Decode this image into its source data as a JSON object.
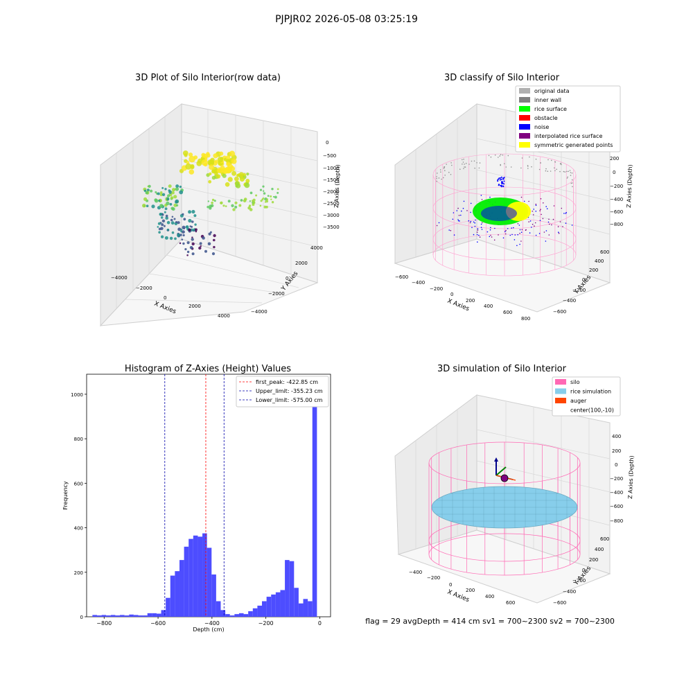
{
  "suptitle": "PJPJR02 2026-05-08 03:25:19",
  "footer": "flag = 29  avgDepth = 414 cm  sv1 = 700~2300  sv2 = 700~2300",
  "chart_data": [
    {
      "type": "scatter",
      "projection": "3d",
      "title": "3D Plot of Silo Interior(row data)",
      "xlabel": "X Axies",
      "ylabel": "Y Axies",
      "zlabel": "Z Axies (Depth)",
      "xticks": [
        "−4000",
        "−2000",
        "0",
        "2000",
        "4000"
      ],
      "yticks": [
        "−4000",
        "−2000",
        "0",
        "2000",
        "4000"
      ],
      "zticks": [
        "0",
        "−500",
        "−1000",
        "−1500",
        "−2000",
        "−2500",
        "−3000",
        "−3500"
      ],
      "colormap": "viridis",
      "grid": true
    },
    {
      "type": "scatter",
      "projection": "3d",
      "title": "3D classify of Silo Interior",
      "xlabel": "X Axies",
      "ylabel": "Y Axies",
      "zlabel": "Z Axies (Depth)",
      "xticks": [
        "−600",
        "−400",
        "−200",
        "0",
        "200",
        "400",
        "600",
        "800"
      ],
      "yticks": [
        "−600",
        "−400",
        "−200",
        "0",
        "200",
        "400",
        "600"
      ],
      "zticks": [
        "200",
        "0",
        "−200",
        "−400",
        "−600",
        "−800"
      ],
      "legend_position": "top-right",
      "legend": [
        {
          "label": "original data",
          "color": "#b0b0b0"
        },
        {
          "label": "inner wall",
          "color": "#808080"
        },
        {
          "label": "rice surface",
          "color": "#00ff00"
        },
        {
          "label": "obstacle",
          "color": "#ff0000"
        },
        {
          "label": "noise",
          "color": "#0000ff"
        },
        {
          "label": "interpolated rice surface",
          "color": "#800080"
        },
        {
          "label": "symmetric generated points",
          "color": "#ffff00"
        }
      ],
      "grid": true
    },
    {
      "type": "bar",
      "title": "Histogram of Z-Axies (Height) Values",
      "xlabel": "Depth (cm)",
      "ylabel": "Frequency",
      "xlim": [
        -865,
        40
      ],
      "ylim": [
        0,
        1090
      ],
      "xticks": [
        -800,
        -600,
        -400,
        -200,
        0
      ],
      "xtick_labels": [
        "−800",
        "−600",
        "−400",
        "−200",
        "0"
      ],
      "yticks": [
        0,
        200,
        400,
        600,
        800,
        1000
      ],
      "bar_color": "#4d4dff",
      "bin_width": 17,
      "bins": [
        {
          "x": -835,
          "v": 8
        },
        {
          "x": -818,
          "v": 6
        },
        {
          "x": -801,
          "v": 8
        },
        {
          "x": -784,
          "v": 6
        },
        {
          "x": -767,
          "v": 8
        },
        {
          "x": -750,
          "v": 6
        },
        {
          "x": -733,
          "v": 8
        },
        {
          "x": -716,
          "v": 6
        },
        {
          "x": -699,
          "v": 10
        },
        {
          "x": -682,
          "v": 8
        },
        {
          "x": -665,
          "v": 6
        },
        {
          "x": -648,
          "v": 6
        },
        {
          "x": -631,
          "v": 16
        },
        {
          "x": -614,
          "v": 16
        },
        {
          "x": -597,
          "v": 14
        },
        {
          "x": -580,
          "v": 30
        },
        {
          "x": -563,
          "v": 85
        },
        {
          "x": -546,
          "v": 185
        },
        {
          "x": -529,
          "v": 205
        },
        {
          "x": -512,
          "v": 255
        },
        {
          "x": -495,
          "v": 315
        },
        {
          "x": -478,
          "v": 350
        },
        {
          "x": -461,
          "v": 365
        },
        {
          "x": -444,
          "v": 360
        },
        {
          "x": -427,
          "v": 375
        },
        {
          "x": -410,
          "v": 310
        },
        {
          "x": -393,
          "v": 190
        },
        {
          "x": -376,
          "v": 70
        },
        {
          "x": -359,
          "v": 30
        },
        {
          "x": -342,
          "v": 12
        },
        {
          "x": -325,
          "v": 6
        },
        {
          "x": -308,
          "v": 12
        },
        {
          "x": -291,
          "v": 16
        },
        {
          "x": -274,
          "v": 12
        },
        {
          "x": -257,
          "v": 25
        },
        {
          "x": -240,
          "v": 38
        },
        {
          "x": -223,
          "v": 50
        },
        {
          "x": -206,
          "v": 70
        },
        {
          "x": -189,
          "v": 90
        },
        {
          "x": -172,
          "v": 100
        },
        {
          "x": -155,
          "v": 110
        },
        {
          "x": -138,
          "v": 120
        },
        {
          "x": -121,
          "v": 255
        },
        {
          "x": -104,
          "v": 250
        },
        {
          "x": -87,
          "v": 130
        },
        {
          "x": -70,
          "v": 60
        },
        {
          "x": -53,
          "v": 80
        },
        {
          "x": -36,
          "v": 70
        },
        {
          "x": -19,
          "v": 1040
        }
      ],
      "vlines": [
        {
          "label": "first_peak: -422.85 cm",
          "x": -422.85,
          "color": "#ff0000"
        },
        {
          "label": "Upper_limit: -355.23 cm",
          "x": -355.23,
          "color": "#0000aa"
        },
        {
          "label": "Lower_limit: -575.00 cm",
          "x": -575.0,
          "color": "#0000aa"
        }
      ],
      "legend_position": "top-right"
    },
    {
      "type": "surface",
      "projection": "3d",
      "title": "3D simulation of Silo Interior",
      "xlabel": "X Axies",
      "ylabel": "Y Axies",
      "zlabel": "Z Axies (Depth)",
      "xticks": [
        "−400",
        "−200",
        "0",
        "200",
        "400",
        "600"
      ],
      "yticks": [
        "−600",
        "−400",
        "−200",
        "0",
        "200",
        "400",
        "600"
      ],
      "zticks": [
        "400",
        "200",
        "0",
        "−200",
        "−400",
        "−600",
        "−800"
      ],
      "legend_position": "top-right",
      "legend": [
        {
          "label": "silo",
          "color": "#ff69b4"
        },
        {
          "label": "rice simulation",
          "color": "#87ceeb"
        },
        {
          "label": "auger",
          "color": "#ff4500"
        },
        {
          "label": "center(100,-10)",
          "color": ""
        }
      ],
      "grid": true
    }
  ]
}
